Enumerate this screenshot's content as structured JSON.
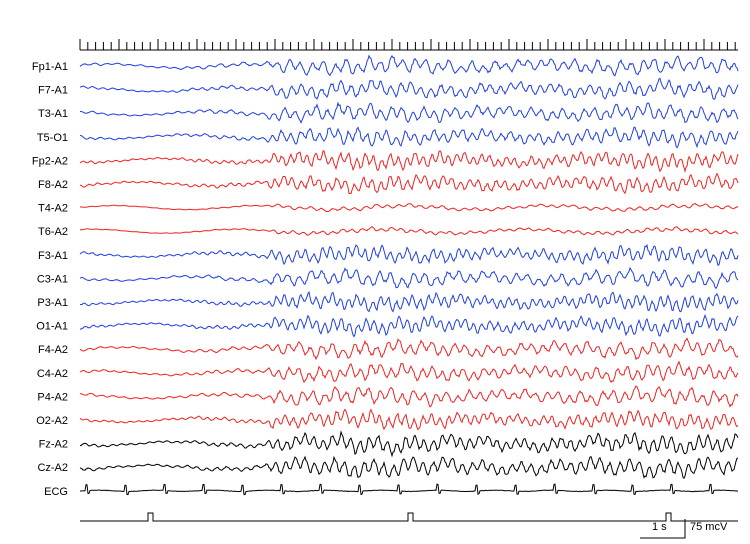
{
  "chart_data": {
    "type": "line",
    "title": "",
    "scale_time_label": "1 s",
    "scale_amp_label": "75 mcV",
    "colors": {
      "left": "#1f3fe0",
      "right": "#ee2222",
      "midline": "#000000",
      "ecg": "#000000",
      "marker": "#000000"
    },
    "channels": [
      {
        "name": "Fp1-A1",
        "group": "left"
      },
      {
        "name": "F7-A1",
        "group": "left"
      },
      {
        "name": "T3-A1",
        "group": "left"
      },
      {
        "name": "T5-O1",
        "group": "left"
      },
      {
        "name": "Fp2-A2",
        "group": "right"
      },
      {
        "name": "F8-A2",
        "group": "right"
      },
      {
        "name": "T4-A2",
        "group": "right"
      },
      {
        "name": "T6-A2",
        "group": "right"
      },
      {
        "name": "F3-A1",
        "group": "left"
      },
      {
        "name": "C3-A1",
        "group": "left"
      },
      {
        "name": "P3-A1",
        "group": "left"
      },
      {
        "name": "O1-A1",
        "group": "left"
      },
      {
        "name": "F4-A2",
        "group": "right"
      },
      {
        "name": "C4-A2",
        "group": "right"
      },
      {
        "name": "P4-A2",
        "group": "right"
      },
      {
        "name": "O2-A2",
        "group": "right"
      },
      {
        "name": "Fz-A2",
        "group": "midline"
      },
      {
        "name": "Cz-A2",
        "group": "midline"
      },
      {
        "name": "ECG",
        "group": "ecg"
      }
    ]
  }
}
